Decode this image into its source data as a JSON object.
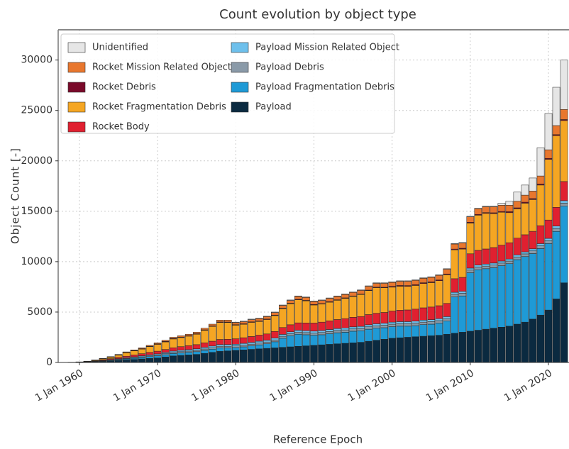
{
  "chart_data": {
    "type": "stacked_bar",
    "title": "Count evolution by object type",
    "xlabel": "Reference Epoch",
    "ylabel": "Object Count [-]",
    "x": [
      1958,
      1959,
      1960,
      1961,
      1962,
      1963,
      1964,
      1965,
      1966,
      1967,
      1968,
      1969,
      1970,
      1971,
      1972,
      1973,
      1974,
      1975,
      1976,
      1977,
      1978,
      1979,
      1980,
      1981,
      1982,
      1983,
      1984,
      1985,
      1986,
      1987,
      1988,
      1989,
      1990,
      1991,
      1992,
      1993,
      1994,
      1995,
      1996,
      1997,
      1998,
      1999,
      2000,
      2001,
      2002,
      2003,
      2004,
      2005,
      2006,
      2007,
      2008,
      2009,
      2010,
      2011,
      2012,
      2013,
      2014,
      2015,
      2016,
      2017,
      2018,
      2019,
      2020,
      2021,
      2022
    ],
    "xlim": [
      1957.28,
      2022.63
    ],
    "xticks": [
      {
        "value": 1960,
        "label": "1 Jan 1960"
      },
      {
        "value": 1970,
        "label": "1 Jan 1970"
      },
      {
        "value": 1980,
        "label": "1 Jan 1980"
      },
      {
        "value": 1990,
        "label": "1 Jan 1990"
      },
      {
        "value": 2000,
        "label": "1 Jan 2000"
      },
      {
        "value": 2010,
        "label": "1 Jan 2010"
      },
      {
        "value": 2020,
        "label": "1 Jan 2020"
      }
    ],
    "ylim": [
      0,
      33000
    ],
    "yticks": [
      0,
      5000,
      10000,
      15000,
      20000,
      25000,
      30000
    ],
    "grid": true,
    "legend": "upper left",
    "series": [
      {
        "name": "Unidentified",
        "color": "#e6e6e6",
        "values": [
          0,
          0,
          0,
          0,
          0,
          0,
          0,
          0,
          0,
          0,
          0,
          0,
          0,
          0,
          0,
          0,
          0,
          0,
          0,
          0,
          0,
          0,
          50,
          50,
          50,
          50,
          50,
          50,
          50,
          50,
          50,
          50,
          50,
          50,
          50,
          50,
          50,
          50,
          50,
          50,
          50,
          50,
          50,
          50,
          50,
          50,
          50,
          50,
          50,
          50,
          50,
          50,
          50,
          50,
          50,
          50,
          200,
          400,
          900,
          1000,
          1300,
          2800,
          3600,
          3800,
          4900
        ]
      },
      {
        "name": "Rocket Mission Related Object",
        "color": "#e8772e",
        "values": [
          0,
          0,
          5,
          10,
          20,
          30,
          40,
          50,
          60,
          70,
          80,
          90,
          100,
          110,
          120,
          130,
          140,
          150,
          160,
          170,
          180,
          190,
          200,
          210,
          220,
          230,
          240,
          250,
          260,
          270,
          280,
          290,
          300,
          310,
          320,
          330,
          340,
          350,
          360,
          370,
          380,
          390,
          400,
          410,
          420,
          430,
          440,
          450,
          460,
          470,
          500,
          520,
          540,
          560,
          580,
          600,
          620,
          640,
          660,
          700,
          740,
          800,
          850,
          900,
          1000
        ]
      },
      {
        "name": "Rocket Debris",
        "color": "#7a0a2a",
        "values": [
          0,
          0,
          0,
          5,
          10,
          15,
          20,
          25,
          30,
          35,
          40,
          45,
          50,
          50,
          50,
          50,
          50,
          50,
          50,
          50,
          50,
          50,
          50,
          50,
          50,
          50,
          50,
          50,
          50,
          50,
          50,
          50,
          50,
          50,
          50,
          50,
          50,
          50,
          50,
          50,
          50,
          50,
          80,
          80,
          80,
          80,
          80,
          80,
          80,
          80,
          80,
          80,
          80,
          80,
          80,
          80,
          80,
          100,
          100,
          100,
          100,
          100,
          100,
          100,
          100
        ]
      },
      {
        "name": "Rocket Fragmentation Debris",
        "color": "#f5a623",
        "values": [
          0,
          5,
          15,
          25,
          50,
          95,
          140,
          225,
          340,
          405,
          460,
          565,
          680,
          750,
          870,
          900,
          945,
          1030,
          1245,
          1470,
          1685,
          1660,
          1350,
          1335,
          1405,
          1360,
          1430,
          1575,
          1875,
          2090,
          2290,
          2195,
          1790,
          1790,
          1850,
          1910,
          2010,
          2070,
          2180,
          2380,
          2540,
          2450,
          2370,
          2380,
          2340,
          2350,
          2410,
          2420,
          2480,
          2840,
          2860,
          2810,
          3050,
          3490,
          3530,
          3370,
          3260,
          2980,
          2910,
          3130,
          3150,
          4030,
          6020,
          7110,
          6050
        ]
      },
      {
        "name": "Rocket Body",
        "color": "#e02030",
        "values": [
          0,
          5,
          10,
          20,
          40,
          60,
          90,
          120,
          150,
          180,
          210,
          240,
          270,
          300,
          330,
          360,
          390,
          420,
          450,
          480,
          510,
          520,
          540,
          560,
          580,
          600,
          620,
          650,
          680,
          700,
          730,
          760,
          800,
          830,
          860,
          890,
          920,
          950,
          980,
          1010,
          1040,
          1070,
          1100,
          1130,
          1160,
          1190,
          1220,
          1250,
          1280,
          1310,
          1350,
          1380,
          1420,
          1460,
          1500,
          1540,
          1580,
          1620,
          1660,
          1700,
          1740,
          1780,
          1820,
          1860,
          1900
        ]
      },
      {
        "name": "Payload Mission Related Object",
        "color": "#6ec0ec",
        "values": [
          0,
          5,
          10,
          20,
          30,
          40,
          50,
          60,
          70,
          80,
          90,
          100,
          110,
          120,
          130,
          140,
          145,
          150,
          155,
          160,
          165,
          170,
          170,
          175,
          175,
          180,
          180,
          185,
          185,
          190,
          190,
          195,
          200,
          200,
          200,
          200,
          200,
          200,
          200,
          200,
          200,
          200,
          200,
          200,
          200,
          200,
          200,
          200,
          200,
          200,
          200,
          200,
          200,
          200,
          200,
          200,
          200,
          200,
          200,
          200,
          200,
          220,
          230,
          240,
          250
        ]
      },
      {
        "name": "Payload Debris",
        "color": "#8a9aa8",
        "values": [
          0,
          0,
          0,
          0,
          10,
          20,
          30,
          40,
          50,
          60,
          70,
          80,
          90,
          100,
          110,
          120,
          120,
          130,
          140,
          150,
          160,
          160,
          160,
          170,
          170,
          180,
          180,
          190,
          200,
          200,
          210,
          210,
          210,
          220,
          220,
          220,
          230,
          230,
          230,
          240,
          240,
          240,
          250,
          250,
          250,
          250,
          250,
          250,
          250,
          250,
          260,
          260,
          260,
          260,
          260,
          260,
          260,
          260,
          270,
          270,
          270,
          270,
          280,
          290,
          300
        ]
      },
      {
        "name": "Payload Fragmentation Debris",
        "color": "#1f9ad6",
        "values": [
          0,
          0,
          0,
          10,
          20,
          40,
          60,
          80,
          100,
          120,
          150,
          180,
          200,
          220,
          240,
          250,
          260,
          270,
          300,
          320,
          350,
          300,
          280,
          300,
          350,
          400,
          450,
          600,
          900,
          1100,
          1200,
          1100,
          1000,
          1000,
          1050,
          1100,
          1100,
          1150,
          1150,
          1200,
          1200,
          1150,
          1150,
          1150,
          1100,
          1100,
          1150,
          1150,
          1200,
          1300,
          3600,
          3600,
          5800,
          6000,
          6000,
          6000,
          6100,
          6200,
          6400,
          6500,
          6500,
          6600,
          6600,
          6700,
          7600
        ]
      },
      {
        "name": "Payload",
        "color": "#0b2a40",
        "values": [
          5,
          10,
          20,
          40,
          70,
          100,
          150,
          200,
          250,
          300,
          350,
          400,
          450,
          550,
          650,
          700,
          750,
          800,
          900,
          1000,
          1100,
          1150,
          1200,
          1250,
          1300,
          1350,
          1400,
          1450,
          1500,
          1550,
          1600,
          1650,
          1700,
          1750,
          1800,
          1850,
          1900,
          1950,
          2000,
          2100,
          2200,
          2300,
          2400,
          2450,
          2500,
          2550,
          2600,
          2650,
          2700,
          2800,
          2900,
          3000,
          3100,
          3200,
          3300,
          3400,
          3500,
          3600,
          3800,
          4000,
          4300,
          4700,
          5200,
          6300,
          7900
        ]
      }
    ]
  }
}
